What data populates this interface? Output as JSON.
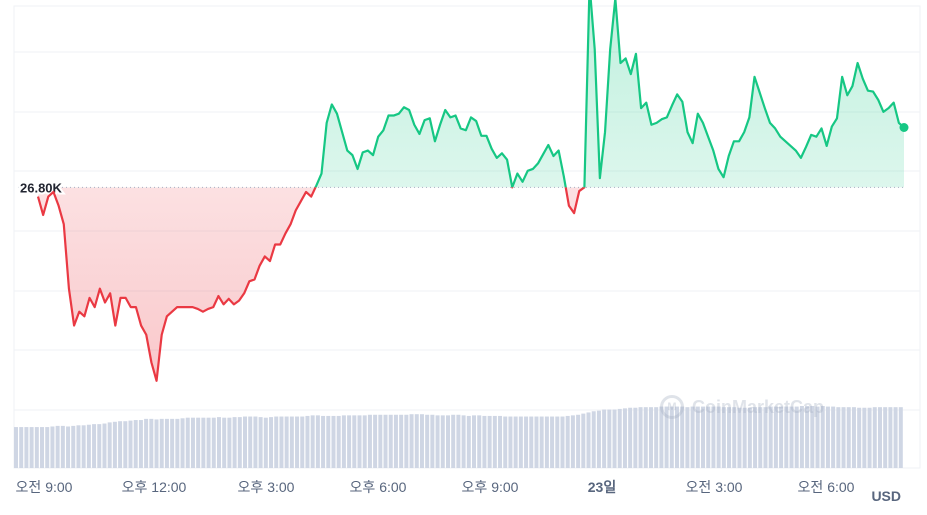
{
  "chart_data": {
    "type": "line",
    "reference_label": "26.80K",
    "reference_value": 26800,
    "currency": "USD",
    "ylim": [
      26580,
      26960
    ],
    "x_ticks": [
      "오전 9:00",
      "오후 12:00",
      "오후 3:00",
      "오후 6:00",
      "오후 9:00",
      "23일",
      "오전 3:00",
      "오전 6:00"
    ],
    "bold_ticks": [
      "23일"
    ],
    "colors": {
      "up": "#16c784",
      "down": "#ea3943",
      "grid": "#eff2f5",
      "volume": "#cfd6e4"
    },
    "series": [
      {
        "values": [
          26790,
          26770,
          26790,
          26795,
          26780,
          26760,
          26690,
          26650,
          26665,
          26660,
          26680,
          26670,
          26690,
          26675,
          26685,
          26650,
          26680,
          26680,
          26670,
          26670,
          26650,
          26640,
          26610,
          26590,
          26640,
          26660,
          26665,
          26670,
          26670,
          26670,
          26670,
          26668,
          26665,
          26668,
          26670,
          26682,
          26673,
          26679,
          26673,
          26677,
          26685,
          26698,
          26700,
          26715,
          26725,
          26720,
          26738,
          26738,
          26750,
          26760,
          26775,
          26785,
          26795,
          26790,
          26802,
          26815,
          26870,
          26890,
          26880,
          26860,
          26840,
          26835,
          26820,
          26838,
          26840,
          26835,
          26855,
          26862,
          26878,
          26878,
          26880,
          26887,
          26884,
          26868,
          26858,
          26873,
          26875,
          26850,
          26868,
          26884,
          26876,
          26878,
          26864,
          26862,
          26876,
          26872,
          26856,
          26856,
          26842,
          26832,
          26837,
          26830,
          26800,
          26815,
          26806,
          26818,
          26820,
          26826,
          26836,
          26846,
          26834,
          26840,
          26812,
          26780,
          26772,
          26796,
          26800,
          27020,
          26950,
          26810,
          26860,
          26950,
          27005,
          26935,
          26940,
          26923,
          26945,
          26886,
          26892,
          26868,
          26870,
          26874,
          26876,
          26889,
          26901,
          26893,
          26860,
          26848,
          26880,
          26870,
          26855,
          26840,
          26820,
          26811,
          26834,
          26850,
          26850,
          26860,
          26876,
          26920,
          26903,
          26886,
          26870,
          26864,
          26855,
          26850,
          26845,
          26840,
          26832,
          26844,
          26857,
          26855,
          26864,
          26845,
          26866,
          26875,
          26920,
          26900,
          26910,
          26935,
          26918,
          26905,
          26904,
          26895,
          26882,
          26886,
          26892,
          26870,
          26865
        ]
      }
    ],
    "volume": [
      0.7,
      0.7,
      0.7,
      0.7,
      0.7,
      0.7,
      0.7,
      0.71,
      0.72,
      0.72,
      0.71,
      0.72,
      0.73,
      0.73,
      0.74,
      0.75,
      0.75,
      0.76,
      0.78,
      0.79,
      0.8,
      0.8,
      0.81,
      0.82,
      0.82,
      0.84,
      0.84,
      0.83,
      0.84,
      0.84,
      0.84,
      0.84,
      0.85,
      0.86,
      0.86,
      0.86,
      0.86,
      0.86,
      0.86,
      0.87,
      0.86,
      0.86,
      0.87,
      0.87,
      0.88,
      0.88,
      0.88,
      0.87,
      0.86,
      0.87,
      0.88,
      0.88,
      0.88,
      0.88,
      0.88,
      0.88,
      0.89,
      0.9,
      0.9,
      0.89,
      0.89,
      0.89,
      0.89,
      0.9,
      0.9,
      0.9,
      0.9,
      0.9,
      0.91,
      0.91,
      0.91,
      0.91,
      0.91,
      0.91,
      0.91,
      0.91,
      0.92,
      0.92,
      0.92,
      0.91,
      0.91,
      0.9,
      0.9,
      0.9,
      0.91,
      0.91,
      0.9,
      0.89,
      0.9,
      0.9,
      0.89,
      0.89,
      0.89,
      0.89,
      0.88,
      0.88,
      0.88,
      0.88,
      0.88,
      0.88,
      0.88,
      0.88,
      0.88,
      0.88,
      0.88,
      0.88,
      0.89,
      0.9,
      0.91,
      0.93,
      0.95,
      0.97,
      0.98,
      1.0,
      1.0,
      1.0,
      1.01,
      1.02,
      1.03,
      1.03,
      1.04,
      1.04,
      1.04,
      1.04,
      1.05,
      1.05,
      1.05,
      1.05,
      1.05,
      1.04,
      1.05,
      1.05,
      1.05,
      1.05,
      1.05,
      1.05,
      1.04,
      1.04,
      1.04,
      1.03,
      1.03,
      1.03,
      1.04,
      1.04,
      1.04,
      1.05,
      1.05,
      1.05,
      1.05,
      1.05,
      1.05,
      1.06,
      1.06,
      1.06,
      1.05,
      1.06,
      1.05,
      1.05,
      1.04,
      1.04,
      1.04,
      1.04,
      1.03,
      1.03,
      1.03,
      1.04,
      1.04,
      1.04,
      1.04,
      1.04,
      1.04
    ],
    "watermark": "CoinMarketCap",
    "watermark_mark": "M"
  }
}
